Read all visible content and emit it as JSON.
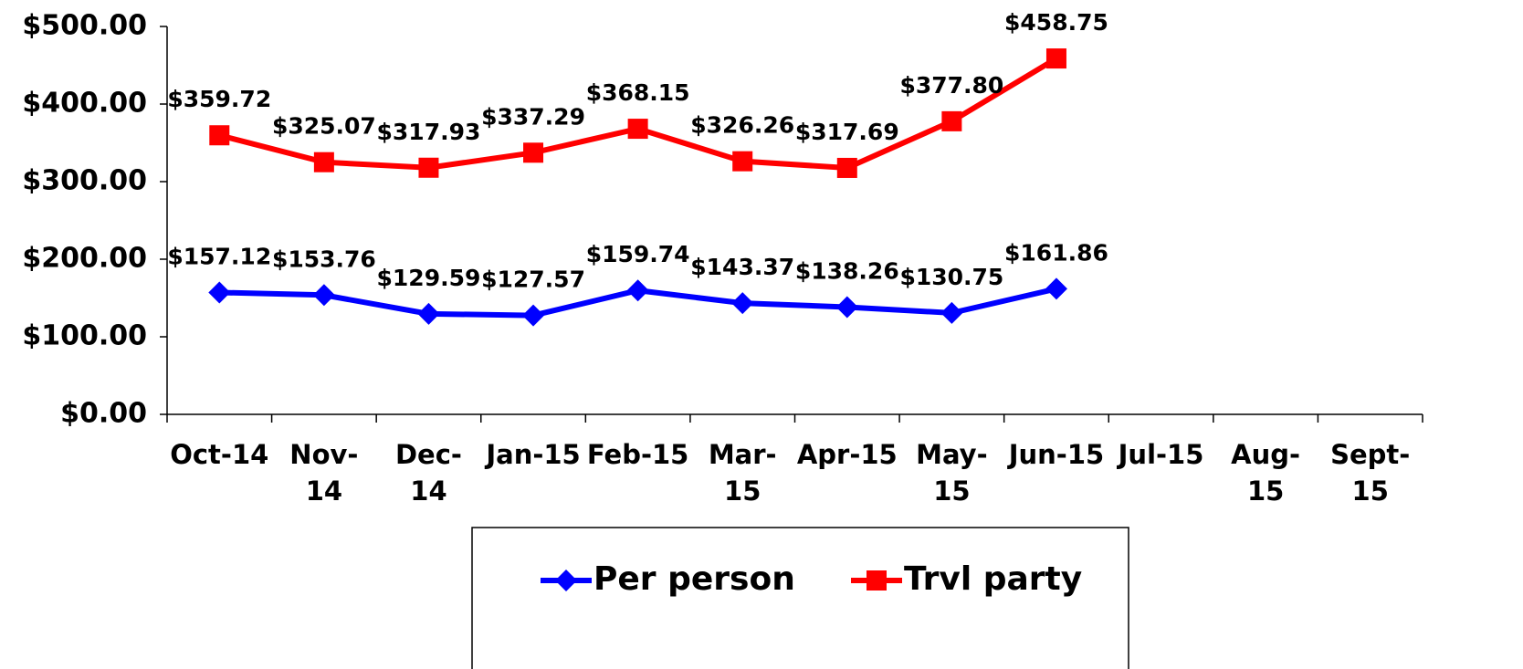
{
  "chart_data": {
    "type": "line",
    "categories": [
      "Oct-14",
      "Nov-14",
      "Dec-14",
      "Jan-15",
      "Feb-15",
      "Mar-15",
      "Apr-15",
      "May-15",
      "Jun-15",
      "Jul-15",
      "Aug-15",
      "Sept-15"
    ],
    "series": [
      {
        "name": "Per person",
        "color": "#0000ff",
        "marker": "diamond",
        "values": [
          157.12,
          153.76,
          129.59,
          127.57,
          159.74,
          143.37,
          138.26,
          130.75,
          161.86,
          null,
          null,
          null
        ],
        "value_labels": [
          "$157.12",
          "$153.76",
          "$129.59",
          "$127.57",
          "$159.74",
          "$143.37",
          "$138.26",
          "$130.75",
          "$161.86",
          null,
          null,
          null
        ]
      },
      {
        "name": "Trvl party",
        "color": "#ff0000",
        "marker": "square",
        "values": [
          359.72,
          325.07,
          317.93,
          337.29,
          368.15,
          326.26,
          317.69,
          377.8,
          458.75,
          null,
          null,
          null
        ],
        "value_labels": [
          "$359.72",
          "$325.07",
          "$317.93",
          "$337.29",
          "$368.15",
          "$326.26",
          "$317.69",
          "$377.80",
          "$458.75",
          null,
          null,
          null
        ]
      }
    ],
    "ylim": [
      0,
      500
    ],
    "yticks": [
      {
        "value": 0,
        "label": "$0.00"
      },
      {
        "value": 100,
        "label": "$100.00"
      },
      {
        "value": 200,
        "label": "$200.00"
      },
      {
        "value": 300,
        "label": "$300.00"
      },
      {
        "value": 400,
        "label": "$400.00"
      },
      {
        "value": 500,
        "label": "$500.00"
      }
    ],
    "grid": false,
    "legend": "bottom"
  }
}
